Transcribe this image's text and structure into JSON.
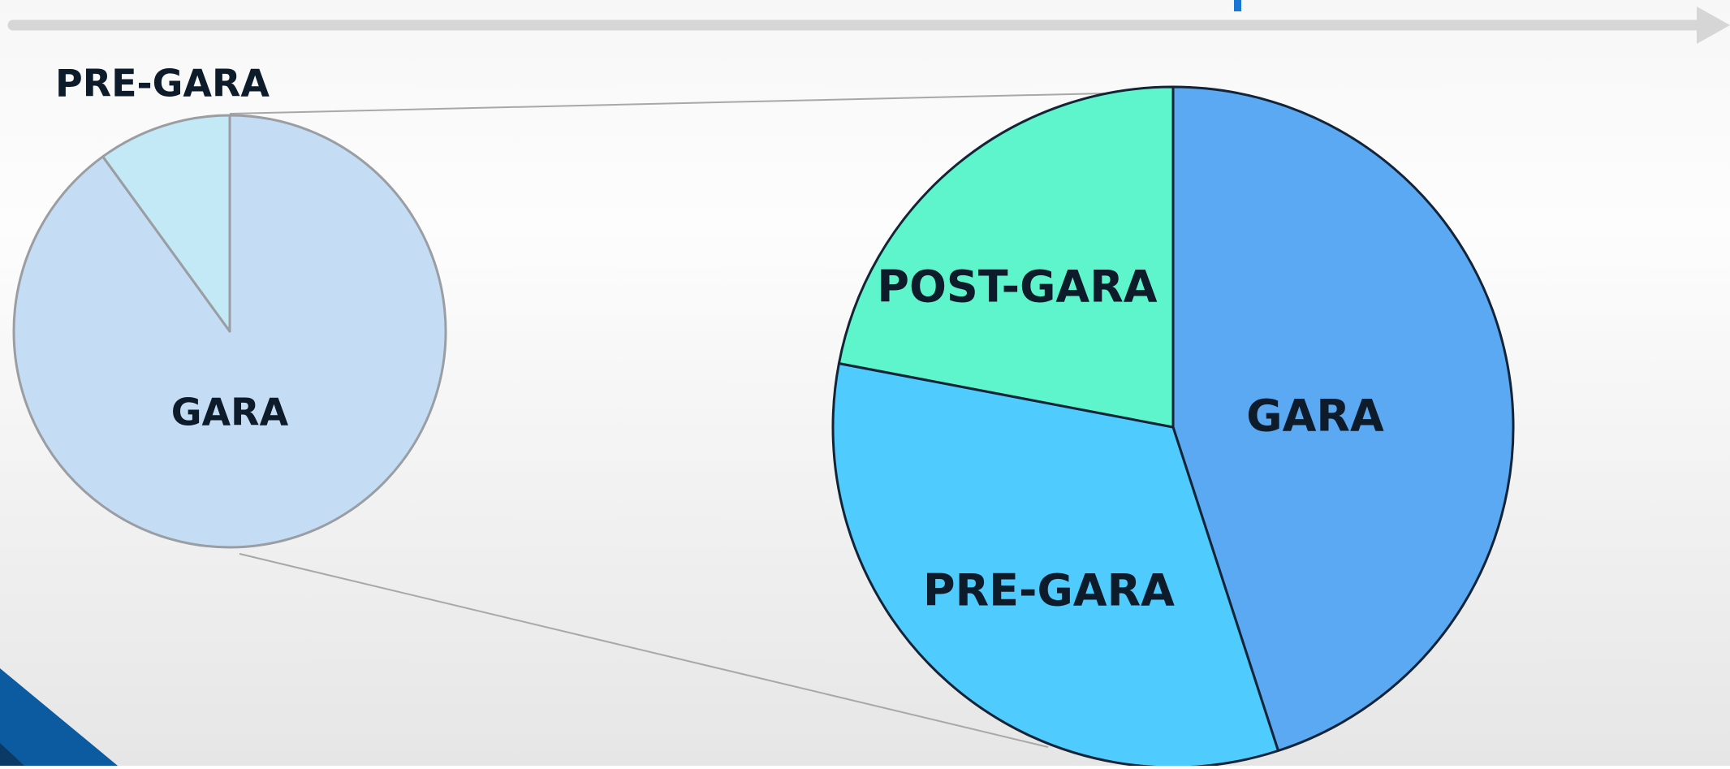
{
  "chart_data": [
    {
      "type": "pie",
      "categories": [
        "GARA",
        "PRE-GARA"
      ],
      "values": [
        90,
        10
      ],
      "colors": [
        "#c4ddf4",
        "#c3e9f6"
      ]
    },
    {
      "type": "pie",
      "categories": [
        "GARA",
        "PRE-GARA",
        "POST-GARA"
      ],
      "values": [
        45,
        33,
        22
      ],
      "colors": [
        "#5aa9f2",
        "#4fcbfe",
        "#5ff5cc"
      ]
    }
  ]
}
